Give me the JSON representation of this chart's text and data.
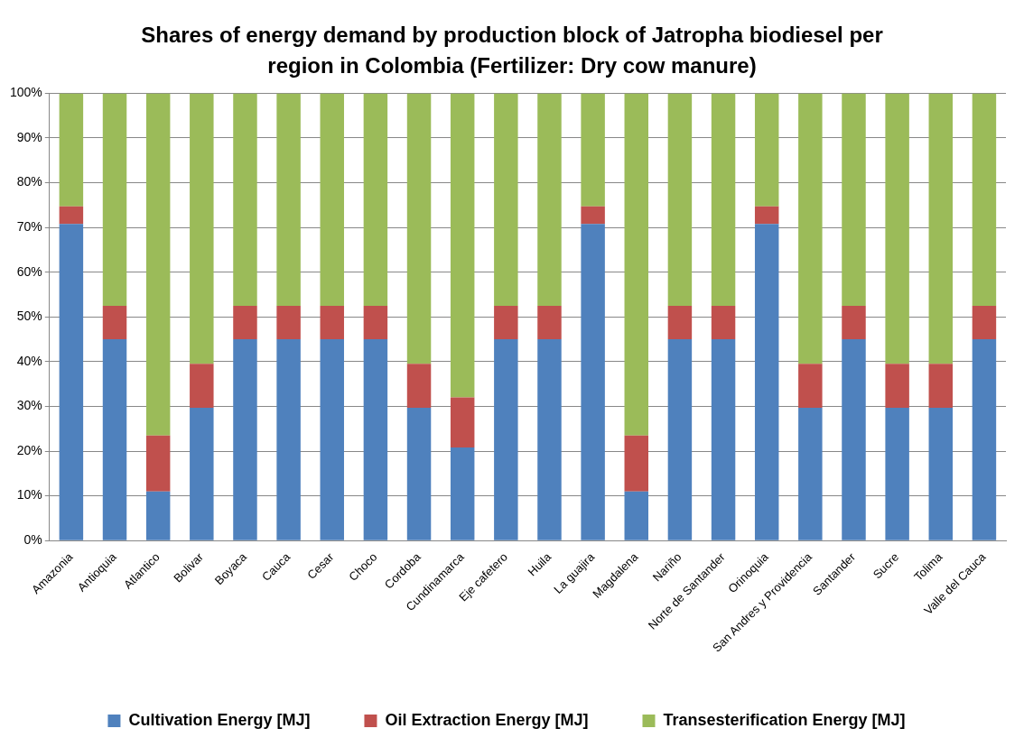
{
  "chart_data": {
    "type": "bar",
    "stacked": true,
    "title": "Shares of energy  demand by production block of Jatropha biodiesel per region in Colombia (Fertilizer: Dry cow manure)",
    "categories": [
      "Amazonia",
      "Antioquia",
      "Atlantico",
      "Bolivar",
      "Boyaca",
      "Cauca",
      "Cesar",
      "Choco",
      "Cordoba",
      "Cundinamarca",
      "Eje cafetero",
      "Huila",
      "La guajira",
      "Magdalena",
      "Nariño",
      "Norte de Santander",
      "Orinoquia",
      "San Andres y Providencia",
      "Santander",
      "Sucre",
      "Tolima",
      "Valle del Cauca"
    ],
    "series": [
      {
        "name": "Cultivation Energy [MJ]",
        "color": "#4f81bd",
        "values": [
          70.8,
          45,
          11,
          29.7,
          45,
          45,
          45,
          45,
          29.7,
          20.8,
          45,
          45,
          70.8,
          11,
          45,
          45,
          70.8,
          29.7,
          45,
          29.7,
          29.7,
          45
        ]
      },
      {
        "name": "Oil Extraction Energy [MJ]",
        "color": "#c0504d",
        "values": [
          3.9,
          7.5,
          12.5,
          9.8,
          7.5,
          7.5,
          7.5,
          7.5,
          9.8,
          11.2,
          7.5,
          7.5,
          3.9,
          12.5,
          7.5,
          7.5,
          3.9,
          9.8,
          7.5,
          9.8,
          9.8,
          7.5
        ]
      },
      {
        "name": "Transesterification Energy [MJ]",
        "color": "#9bbb59",
        "values": [
          25.3,
          47.5,
          76.5,
          60.5,
          47.5,
          47.5,
          47.5,
          47.5,
          60.5,
          68,
          47.5,
          47.5,
          25.3,
          76.5,
          47.5,
          47.5,
          25.3,
          60.5,
          47.5,
          60.5,
          60.5,
          47.5
        ]
      }
    ],
    "ylim": [
      0,
      100
    ],
    "yticks": [
      {
        "value": 0,
        "label": "0%"
      },
      {
        "value": 10,
        "label": "10%"
      },
      {
        "value": 20,
        "label": "20%"
      },
      {
        "value": 30,
        "label": "30%"
      },
      {
        "value": 40,
        "label": "40%"
      },
      {
        "value": 50,
        "label": "50%"
      },
      {
        "value": 60,
        "label": "60%"
      },
      {
        "value": 70,
        "label": "70%"
      },
      {
        "value": 80,
        "label": "80%"
      },
      {
        "value": 90,
        "label": "90%"
      },
      {
        "value": 100,
        "label": "100%"
      }
    ],
    "grid": "y",
    "legend": "bottom"
  }
}
